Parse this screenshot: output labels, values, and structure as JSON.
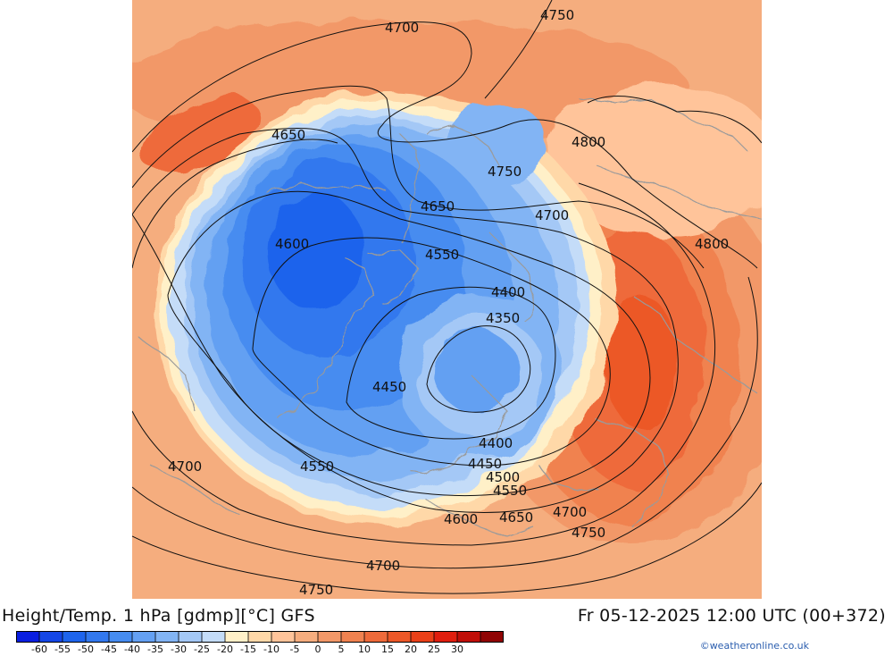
{
  "header": {
    "title_left": "Height/Temp. 1 hPa [gdmp][°C] GFS",
    "title_right": "Fr 05-12-2025 12:00 UTC (00+372)"
  },
  "credit": "©weatheronline.co.uk",
  "colorbar": {
    "colors": [
      "#0a1ee0",
      "#1446e6",
      "#1e64ec",
      "#3278ee",
      "#468cf0",
      "#64a0f2",
      "#82b4f4",
      "#a4c8f6",
      "#c4dcf8",
      "#fff0c8",
      "#ffd8a8",
      "#ffc49a",
      "#f5ad7e",
      "#f29868",
      "#f08250",
      "#ee6a3a",
      "#ec5828",
      "#ea4018",
      "#e01e0e",
      "#c00e08",
      "#900404"
    ],
    "tick_labels": [
      "-60",
      "-55",
      "-50",
      "-45",
      "-40",
      "-35",
      "-30",
      "-25",
      "-20",
      "-15",
      "-10",
      "-5",
      "0",
      "5",
      "10",
      "15",
      "20",
      "25",
      "30"
    ]
  },
  "map": {
    "contour_labels": [
      "4700",
      "4750",
      "4650",
      "4800",
      "4750",
      "4650",
      "4700",
      "4800",
      "4600",
      "4550",
      "4400",
      "4350",
      "4450",
      "4400",
      "4450",
      "4500",
      "4550",
      "4700",
      "4550",
      "4600",
      "4650",
      "4700",
      "4750",
      "4700",
      "4750"
    ]
  }
}
